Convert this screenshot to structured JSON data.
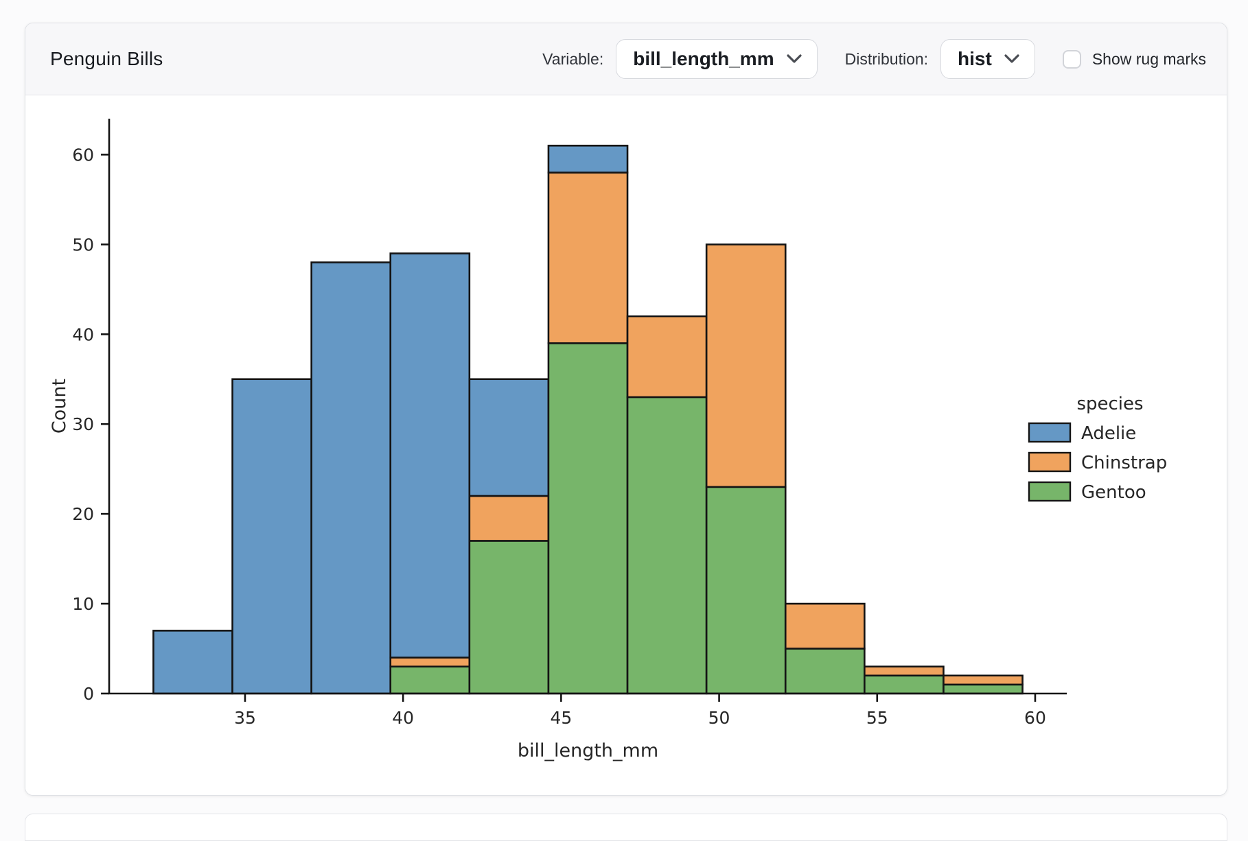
{
  "header": {
    "title": "Penguin Bills",
    "variable_label": "Variable:",
    "variable_value": "bill_length_mm",
    "distribution_label": "Distribution:",
    "distribution_value": "hist",
    "rug_label": "Show rug marks",
    "rug_checked": false
  },
  "chart_data": {
    "type": "bar",
    "subtype": "stacked-histogram",
    "title": "",
    "xlabel": "bill_length_mm",
    "ylabel": "Count",
    "bin_edges": [
      32.1,
      34.6,
      37.1,
      39.6,
      42.1,
      44.6,
      47.1,
      49.6,
      52.1,
      54.6,
      57.1,
      59.6
    ],
    "series": [
      {
        "name": "Adelie",
        "color": "#6598c5",
        "values": [
          7,
          35,
          48,
          45,
          13,
          3,
          0,
          0,
          0,
          0,
          0
        ]
      },
      {
        "name": "Chinstrap",
        "color": "#f0a35e",
        "values": [
          0,
          0,
          0,
          1,
          5,
          19,
          9,
          27,
          5,
          1,
          1
        ]
      },
      {
        "name": "Gentoo",
        "color": "#77b56a",
        "values": [
          0,
          0,
          0,
          3,
          17,
          39,
          33,
          23,
          5,
          2,
          1
        ]
      }
    ],
    "stack_order_bottom_to_top": [
      "Gentoo",
      "Chinstrap",
      "Adelie"
    ],
    "bar_totals": [
      7,
      35,
      48,
      49,
      35,
      61,
      42,
      50,
      10,
      3,
      2
    ],
    "edge_color": "#141414",
    "xlim": [
      30.7,
      61.0
    ],
    "ylim": [
      0,
      64
    ],
    "xticks": [
      35,
      40,
      45,
      50,
      55,
      60
    ],
    "yticks": [
      0,
      10,
      20,
      30,
      40,
      50,
      60
    ],
    "grid": false,
    "legend": {
      "title": "species",
      "position": "center-right",
      "entries": [
        "Adelie",
        "Chinstrap",
        "Gentoo"
      ]
    }
  }
}
